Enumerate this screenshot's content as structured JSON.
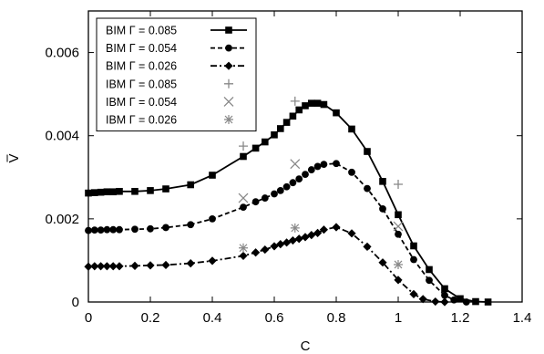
{
  "chart_data": {
    "type": "line",
    "xlabel": "C",
    "ylabel": "V",
    "xlim": [
      0,
      1.4
    ],
    "ylim": [
      0,
      0.007
    ],
    "xticks": [
      0,
      0.2,
      0.4,
      0.6,
      0.8,
      1,
      1.2,
      1.4
    ],
    "xtick_labels": [
      "0",
      "0.2",
      "0.4",
      "0.6",
      "0.8",
      "1",
      "1.2",
      "1.4"
    ],
    "yticks": [
      0,
      0.002,
      0.004,
      0.006
    ],
    "ytick_labels": [
      "0",
      "0.002",
      "0.004",
      "0.006"
    ],
    "grid": false,
    "legend_position": "top-left",
    "series": [
      {
        "name": "BIM Γ = 0.085",
        "style": "solid",
        "marker": "square",
        "color": "#000000",
        "x": [
          0,
          0.02,
          0.04,
          0.06,
          0.08,
          0.1,
          0.15,
          0.2,
          0.25,
          0.33,
          0.4,
          0.5,
          0.54,
          0.57,
          0.6,
          0.62,
          0.64,
          0.66,
          0.68,
          0.7,
          0.72,
          0.74,
          0.76,
          0.8,
          0.85,
          0.9,
          0.95,
          1.0,
          1.05,
          1.1,
          1.15,
          1.2,
          1.25,
          1.29
        ],
        "y": [
          0.00262,
          0.00263,
          0.00264,
          0.00265,
          0.00265,
          0.00266,
          0.00266,
          0.00268,
          0.00272,
          0.00282,
          0.00305,
          0.0035,
          0.0037,
          0.00385,
          0.00402,
          0.00417,
          0.00432,
          0.00447,
          0.00462,
          0.00472,
          0.00478,
          0.00478,
          0.00475,
          0.00455,
          0.00416,
          0.00362,
          0.0029,
          0.0021,
          0.00135,
          0.00078,
          0.00032,
          8e-05,
          1e-05,
          0.0
        ]
      },
      {
        "name": "BIM Γ = 0.054",
        "style": "dashed",
        "marker": "circle",
        "color": "#000000",
        "x": [
          0,
          0.02,
          0.04,
          0.06,
          0.08,
          0.1,
          0.15,
          0.2,
          0.25,
          0.33,
          0.4,
          0.5,
          0.54,
          0.57,
          0.6,
          0.62,
          0.64,
          0.66,
          0.68,
          0.7,
          0.72,
          0.74,
          0.76,
          0.8,
          0.85,
          0.9,
          0.95,
          1.0,
          1.05,
          1.1,
          1.15,
          1.18,
          1.22
        ],
        "y": [
          0.00172,
          0.00173,
          0.00173,
          0.00174,
          0.00174,
          0.00174,
          0.00175,
          0.00176,
          0.00179,
          0.00186,
          0.002,
          0.00228,
          0.00241,
          0.0025,
          0.0026,
          0.00268,
          0.00277,
          0.00287,
          0.00296,
          0.00307,
          0.00318,
          0.00326,
          0.00331,
          0.00333,
          0.00312,
          0.00273,
          0.00224,
          0.00163,
          0.00102,
          0.00052,
          0.00016,
          5e-05,
          0.0
        ]
      },
      {
        "name": "BIM Γ = 0.026",
        "style": "dashdot",
        "marker": "diamond",
        "color": "#000000",
        "x": [
          0,
          0.02,
          0.04,
          0.06,
          0.08,
          0.1,
          0.15,
          0.2,
          0.25,
          0.33,
          0.4,
          0.5,
          0.54,
          0.57,
          0.6,
          0.62,
          0.64,
          0.66,
          0.68,
          0.7,
          0.72,
          0.74,
          0.76,
          0.8,
          0.85,
          0.9,
          0.95,
          1.0,
          1.05,
          1.08,
          1.12,
          1.15
        ],
        "y": [
          0.00085,
          0.00086,
          0.00086,
          0.00086,
          0.00086,
          0.00086,
          0.00087,
          0.00088,
          0.00089,
          0.00093,
          0.00099,
          0.00111,
          0.00119,
          0.00126,
          0.00134,
          0.00139,
          0.00143,
          0.00148,
          0.00152,
          0.00156,
          0.00161,
          0.00166,
          0.00174,
          0.0018,
          0.00165,
          0.00133,
          0.00095,
          0.00053,
          0.00019,
          7e-05,
          1e-05,
          0.0
        ]
      },
      {
        "name": "IBM Γ = 0.085",
        "style": "none",
        "marker": "plus",
        "color": "#888888",
        "x": [
          0.5,
          0.667,
          1.0
        ],
        "y": [
          0.00375,
          0.00483,
          0.00283
        ]
      },
      {
        "name": "IBM Γ = 0.054",
        "style": "none",
        "marker": "cross",
        "color": "#888888",
        "x": [
          0.5,
          0.667,
          1.0
        ],
        "y": [
          0.0025,
          0.00332,
          0.00182
        ]
      },
      {
        "name": "IBM Γ = 0.026",
        "style": "none",
        "marker": "asterisk",
        "color": "#888888",
        "x": [
          0.5,
          0.667,
          1.0
        ],
        "y": [
          0.0013,
          0.00178,
          0.0009
        ]
      }
    ]
  }
}
